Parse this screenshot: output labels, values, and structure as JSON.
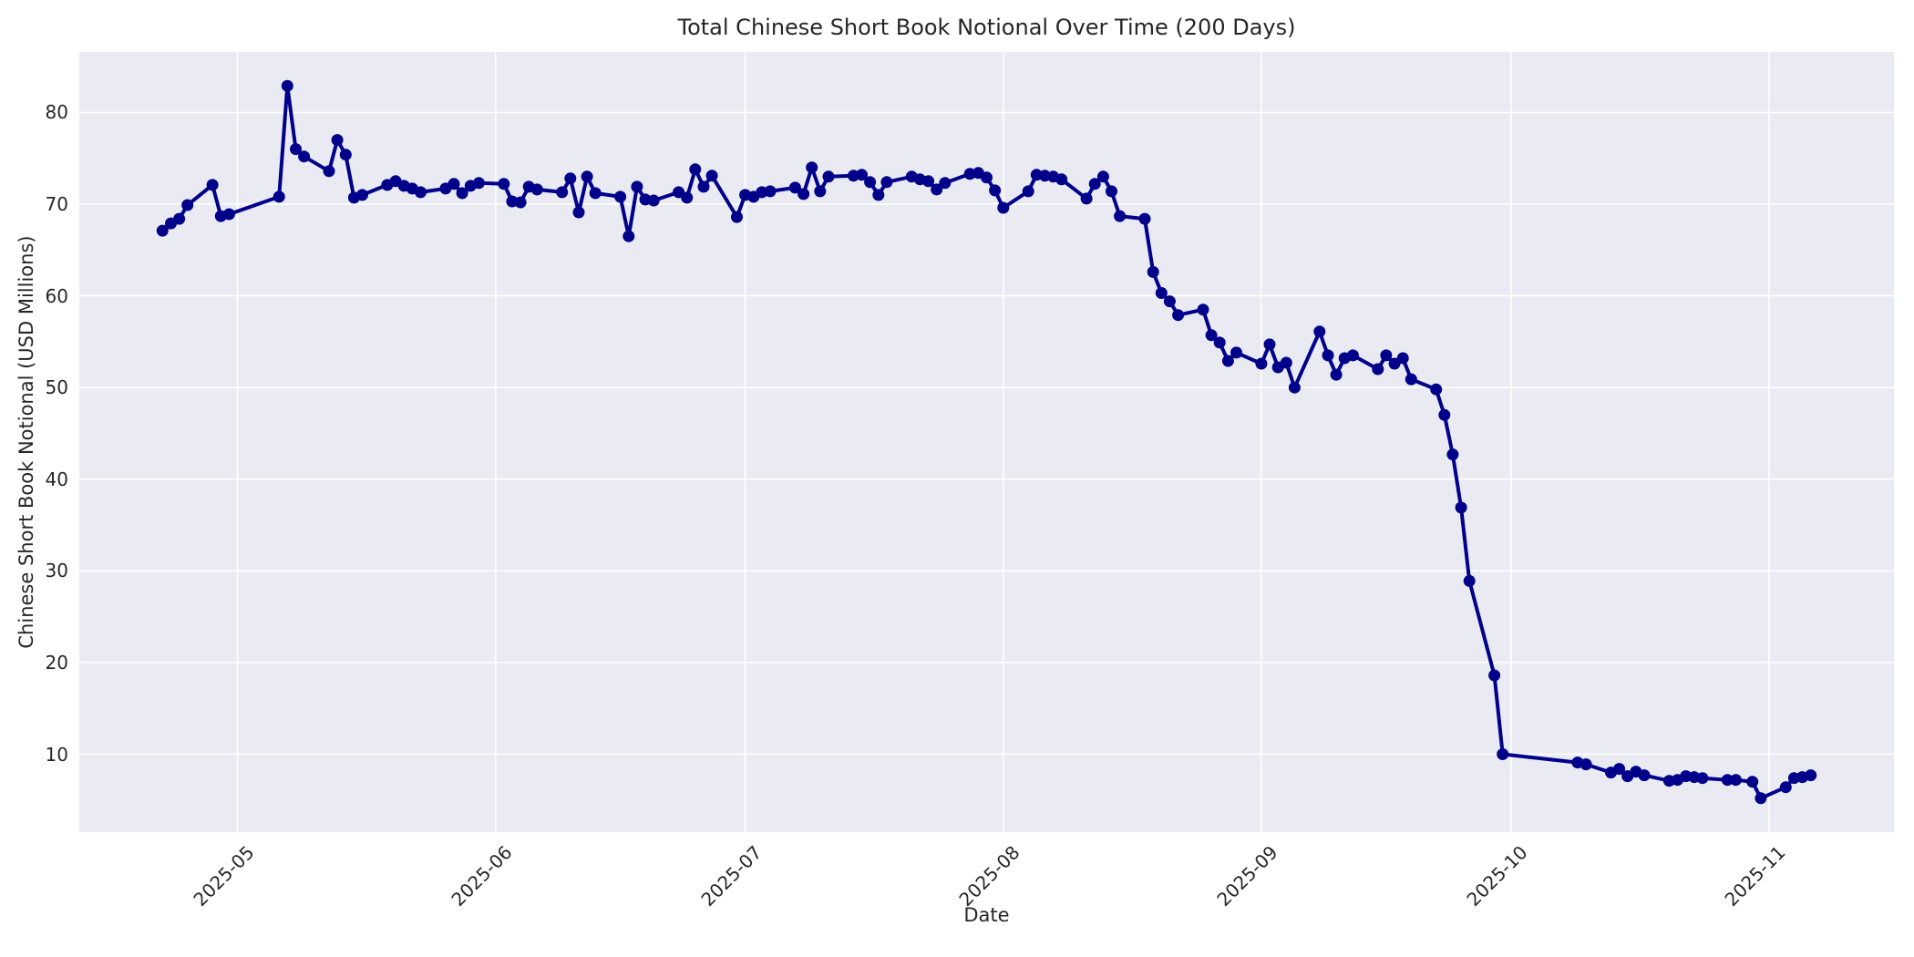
{
  "chart_data": {
    "type": "line",
    "title": "Total Chinese Short Book Notional Over Time (200 Days)",
    "xlabel": "Date",
    "ylabel": "Chinese Short Book Notional (USD Millions)",
    "x_tick_labels": [
      "2025-05",
      "2025-06",
      "2025-07",
      "2025-08",
      "2025-09",
      "2025-10",
      "2025-11"
    ],
    "y_ticks": [
      10,
      20,
      30,
      40,
      50,
      60,
      70,
      80
    ],
    "xlim": [
      "2025-04-12",
      "2025-11-16"
    ],
    "ylim": [
      1.5,
      86.6
    ],
    "grid": true,
    "legend": false,
    "line_color": "#00008B",
    "marker": "circle",
    "plot_background_color": "#EAEAF2",
    "grid_color": "#FFFFFF",
    "text_color": "#262626",
    "series": [
      {
        "name": "Chinese Short Book Notional",
        "points": [
          [
            "2025-04-22",
            67.1
          ],
          [
            "2025-04-23",
            67.9
          ],
          [
            "2025-04-24",
            68.4
          ],
          [
            "2025-04-25",
            69.9
          ],
          [
            "2025-04-28",
            72.1
          ],
          [
            "2025-04-29",
            68.7
          ],
          [
            "2025-04-30",
            68.9
          ],
          [
            "2025-05-06",
            70.8
          ],
          [
            "2025-05-07",
            82.9
          ],
          [
            "2025-05-08",
            76.0
          ],
          [
            "2025-05-09",
            75.2
          ],
          [
            "2025-05-12",
            73.6
          ],
          [
            "2025-05-13",
            77.0
          ],
          [
            "2025-05-14",
            75.4
          ],
          [
            "2025-05-15",
            70.7
          ],
          [
            "2025-05-16",
            71.0
          ],
          [
            "2025-05-19",
            72.1
          ],
          [
            "2025-05-20",
            72.5
          ],
          [
            "2025-05-21",
            72.0
          ],
          [
            "2025-05-22",
            71.7
          ],
          [
            "2025-05-23",
            71.3
          ],
          [
            "2025-05-26",
            71.7
          ],
          [
            "2025-05-27",
            72.2
          ],
          [
            "2025-05-28",
            71.2
          ],
          [
            "2025-05-29",
            72.0
          ],
          [
            "2025-05-30",
            72.3
          ],
          [
            "2025-06-02",
            72.2
          ],
          [
            "2025-06-03",
            70.3
          ],
          [
            "2025-06-04",
            70.2
          ],
          [
            "2025-06-05",
            71.9
          ],
          [
            "2025-06-06",
            71.6
          ],
          [
            "2025-06-09",
            71.3
          ],
          [
            "2025-06-10",
            72.8
          ],
          [
            "2025-06-11",
            69.1
          ],
          [
            "2025-06-12",
            73.0
          ],
          [
            "2025-06-13",
            71.2
          ],
          [
            "2025-06-16",
            70.8
          ],
          [
            "2025-06-17",
            66.5
          ],
          [
            "2025-06-18",
            71.9
          ],
          [
            "2025-06-19",
            70.5
          ],
          [
            "2025-06-20",
            70.4
          ],
          [
            "2025-06-23",
            71.3
          ],
          [
            "2025-06-24",
            70.7
          ],
          [
            "2025-06-25",
            73.8
          ],
          [
            "2025-06-26",
            71.9
          ],
          [
            "2025-06-27",
            73.1
          ],
          [
            "2025-06-30",
            68.6
          ],
          [
            "2025-07-01",
            71.0
          ],
          [
            "2025-07-02",
            70.8
          ],
          [
            "2025-07-03",
            71.3
          ],
          [
            "2025-07-04",
            71.4
          ],
          [
            "2025-07-07",
            71.8
          ],
          [
            "2025-07-08",
            71.1
          ],
          [
            "2025-07-09",
            74.0
          ],
          [
            "2025-07-10",
            71.4
          ],
          [
            "2025-07-11",
            73.0
          ],
          [
            "2025-07-14",
            73.1
          ],
          [
            "2025-07-15",
            73.2
          ],
          [
            "2025-07-16",
            72.4
          ],
          [
            "2025-07-17",
            71.0
          ],
          [
            "2025-07-18",
            72.4
          ],
          [
            "2025-07-21",
            73.0
          ],
          [
            "2025-07-22",
            72.7
          ],
          [
            "2025-07-23",
            72.5
          ],
          [
            "2025-07-24",
            71.6
          ],
          [
            "2025-07-25",
            72.3
          ],
          [
            "2025-07-28",
            73.3
          ],
          [
            "2025-07-29",
            73.4
          ],
          [
            "2025-07-30",
            72.9
          ],
          [
            "2025-07-31",
            71.5
          ],
          [
            "2025-08-01",
            69.6
          ],
          [
            "2025-08-04",
            71.4
          ],
          [
            "2025-08-05",
            73.2
          ],
          [
            "2025-08-06",
            73.1
          ],
          [
            "2025-08-07",
            73.0
          ],
          [
            "2025-08-08",
            72.7
          ],
          [
            "2025-08-11",
            70.6
          ],
          [
            "2025-08-12",
            72.2
          ],
          [
            "2025-08-13",
            73.0
          ],
          [
            "2025-08-14",
            71.4
          ],
          [
            "2025-08-15",
            68.7
          ],
          [
            "2025-08-18",
            68.4
          ],
          [
            "2025-08-19",
            62.6
          ],
          [
            "2025-08-20",
            60.3
          ],
          [
            "2025-08-21",
            59.4
          ],
          [
            "2025-08-22",
            57.9
          ],
          [
            "2025-08-25",
            58.5
          ],
          [
            "2025-08-26",
            55.7
          ],
          [
            "2025-08-27",
            54.9
          ],
          [
            "2025-08-28",
            52.9
          ],
          [
            "2025-08-29",
            53.8
          ],
          [
            "2025-09-01",
            52.6
          ],
          [
            "2025-09-02",
            54.7
          ],
          [
            "2025-09-03",
            52.2
          ],
          [
            "2025-09-04",
            52.7
          ],
          [
            "2025-09-05",
            50.0
          ],
          [
            "2025-09-08",
            56.1
          ],
          [
            "2025-09-09",
            53.5
          ],
          [
            "2025-09-10",
            51.4
          ],
          [
            "2025-09-11",
            53.2
          ],
          [
            "2025-09-12",
            53.5
          ],
          [
            "2025-09-15",
            52.0
          ],
          [
            "2025-09-16",
            53.5
          ],
          [
            "2025-09-17",
            52.6
          ],
          [
            "2025-09-18",
            53.2
          ],
          [
            "2025-09-19",
            50.9
          ],
          [
            "2025-09-22",
            49.8
          ],
          [
            "2025-09-23",
            47.0
          ],
          [
            "2025-09-24",
            42.7
          ],
          [
            "2025-09-25",
            36.9
          ],
          [
            "2025-09-26",
            28.9
          ],
          [
            "2025-09-29",
            18.6
          ],
          [
            "2025-09-30",
            10.0
          ],
          [
            "2025-10-09",
            9.1
          ],
          [
            "2025-10-10",
            8.9
          ],
          [
            "2025-10-13",
            8.0
          ],
          [
            "2025-10-14",
            8.4
          ],
          [
            "2025-10-15",
            7.6
          ],
          [
            "2025-10-16",
            8.1
          ],
          [
            "2025-10-17",
            7.7
          ],
          [
            "2025-10-20",
            7.1
          ],
          [
            "2025-10-21",
            7.2
          ],
          [
            "2025-10-22",
            7.6
          ],
          [
            "2025-10-23",
            7.5
          ],
          [
            "2025-10-24",
            7.4
          ],
          [
            "2025-10-27",
            7.2
          ],
          [
            "2025-10-28",
            7.2
          ],
          [
            "2025-10-30",
            7.0
          ],
          [
            "2025-10-31",
            5.2
          ],
          [
            "2025-11-03",
            6.4
          ],
          [
            "2025-11-04",
            7.4
          ],
          [
            "2025-11-05",
            7.5
          ],
          [
            "2025-11-06",
            7.7
          ]
        ]
      }
    ]
  }
}
